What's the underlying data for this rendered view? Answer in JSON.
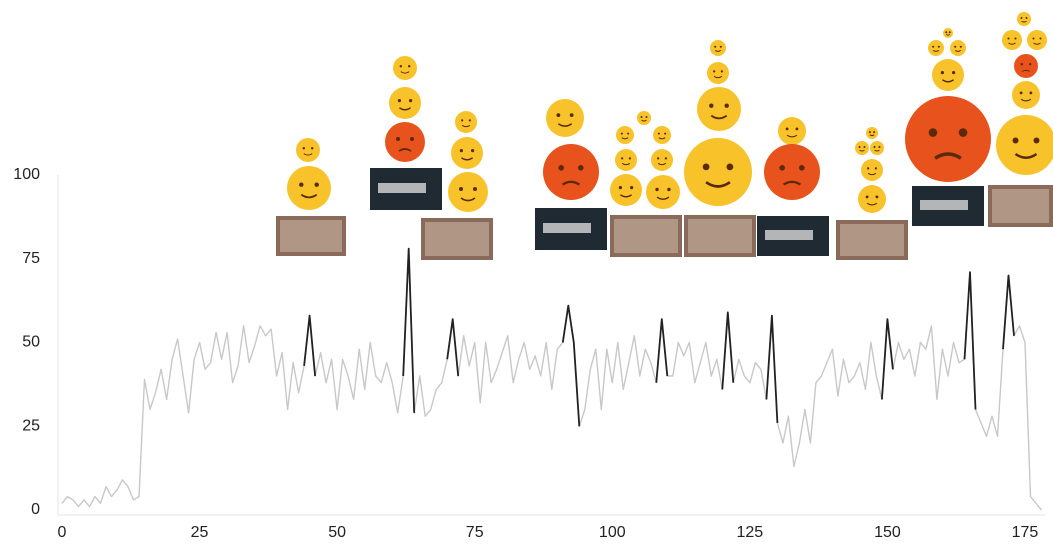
{
  "chart_data": {
    "type": "line",
    "x": [
      0,
      1,
      2,
      3,
      4,
      5,
      6,
      7,
      8,
      9,
      10,
      11,
      12,
      13,
      14,
      15,
      16,
      17,
      18,
      19,
      20,
      21,
      22,
      23,
      24,
      25,
      26,
      27,
      28,
      29,
      30,
      31,
      32,
      33,
      34,
      35,
      36,
      37,
      38,
      39,
      40,
      41,
      42,
      43,
      44,
      45,
      46,
      47,
      48,
      49,
      50,
      51,
      52,
      53,
      54,
      55,
      56,
      57,
      58,
      59,
      60,
      61,
      62,
      63,
      64,
      65,
      66,
      67,
      68,
      69,
      70,
      71,
      72,
      73,
      74,
      75,
      76,
      77,
      78,
      79,
      80,
      81,
      82,
      83,
      84,
      85,
      86,
      87,
      88,
      89,
      90,
      91,
      92,
      93,
      94,
      95,
      96,
      97,
      98,
      99,
      100,
      101,
      102,
      103,
      104,
      105,
      106,
      107,
      108,
      109,
      110,
      111,
      112,
      113,
      114,
      115,
      116,
      117,
      118,
      119,
      120,
      121,
      122,
      123,
      124,
      125,
      126,
      127,
      128,
      129,
      130,
      131,
      132,
      133,
      134,
      135,
      136,
      137,
      138,
      139,
      140,
      141,
      142,
      143,
      144,
      145,
      146,
      147,
      148,
      149,
      150,
      151,
      152,
      153,
      154,
      155,
      156,
      157,
      158,
      159,
      160,
      161,
      162,
      163,
      164,
      165,
      166,
      167,
      168,
      169,
      170,
      171,
      172,
      173,
      174,
      175,
      176,
      177,
      178
    ],
    "values": [
      2,
      4,
      3,
      1,
      3,
      1,
      4,
      2,
      7,
      4,
      6,
      9,
      7,
      3,
      4,
      39,
      30,
      35,
      42,
      33,
      45,
      51,
      40,
      29,
      45,
      50,
      42,
      44,
      53,
      45,
      53,
      38,
      43,
      55,
      44,
      49,
      55,
      52,
      54,
      40,
      47,
      30,
      44,
      35,
      43,
      58,
      40,
      47,
      38,
      45,
      30,
      45,
      40,
      33,
      48,
      36,
      50,
      40,
      38,
      44,
      38,
      29,
      40,
      78,
      29,
      40,
      28,
      30,
      36,
      38,
      45,
      57,
      40,
      52,
      43,
      50,
      32,
      50,
      38,
      42,
      47,
      52,
      38,
      45,
      50,
      42,
      46,
      40,
      50,
      36,
      48,
      50,
      61,
      50,
      25,
      30,
      42,
      48,
      30,
      48,
      38,
      50,
      36,
      44,
      52,
      40,
      48,
      44,
      38,
      57,
      40,
      40,
      50,
      46,
      50,
      38,
      44,
      50,
      40,
      45,
      36,
      59,
      38,
      45,
      40,
      38,
      44,
      42,
      33,
      58,
      26,
      20,
      28,
      13,
      20,
      30,
      20,
      38,
      40,
      44,
      48,
      34,
      45,
      38,
      40,
      44,
      36,
      50,
      40,
      33,
      57,
      42,
      50,
      45,
      48,
      40,
      50,
      48,
      55,
      33,
      48,
      40,
      50,
      44,
      45,
      71,
      30,
      26,
      22,
      28,
      22,
      48,
      70,
      52,
      55,
      50,
      4,
      2,
      0
    ],
    "color": "#c8c8c8",
    "highlight_color": "#222222",
    "highlights": [
      [
        44,
        46
      ],
      [
        62,
        64
      ],
      [
        70,
        72
      ],
      [
        91,
        94
      ],
      [
        108,
        110
      ],
      [
        120,
        122
      ],
      [
        128,
        130
      ],
      [
        149,
        151
      ],
      [
        164,
        166
      ],
      [
        171,
        173
      ]
    ],
    "xlim": [
      0,
      178
    ],
    "xticks": [
      0,
      25,
      50,
      75,
      100,
      125,
      150,
      175
    ],
    "ylim": [
      0,
      100
    ],
    "yticks": [
      0,
      25,
      50,
      75,
      100
    ]
  }
}
